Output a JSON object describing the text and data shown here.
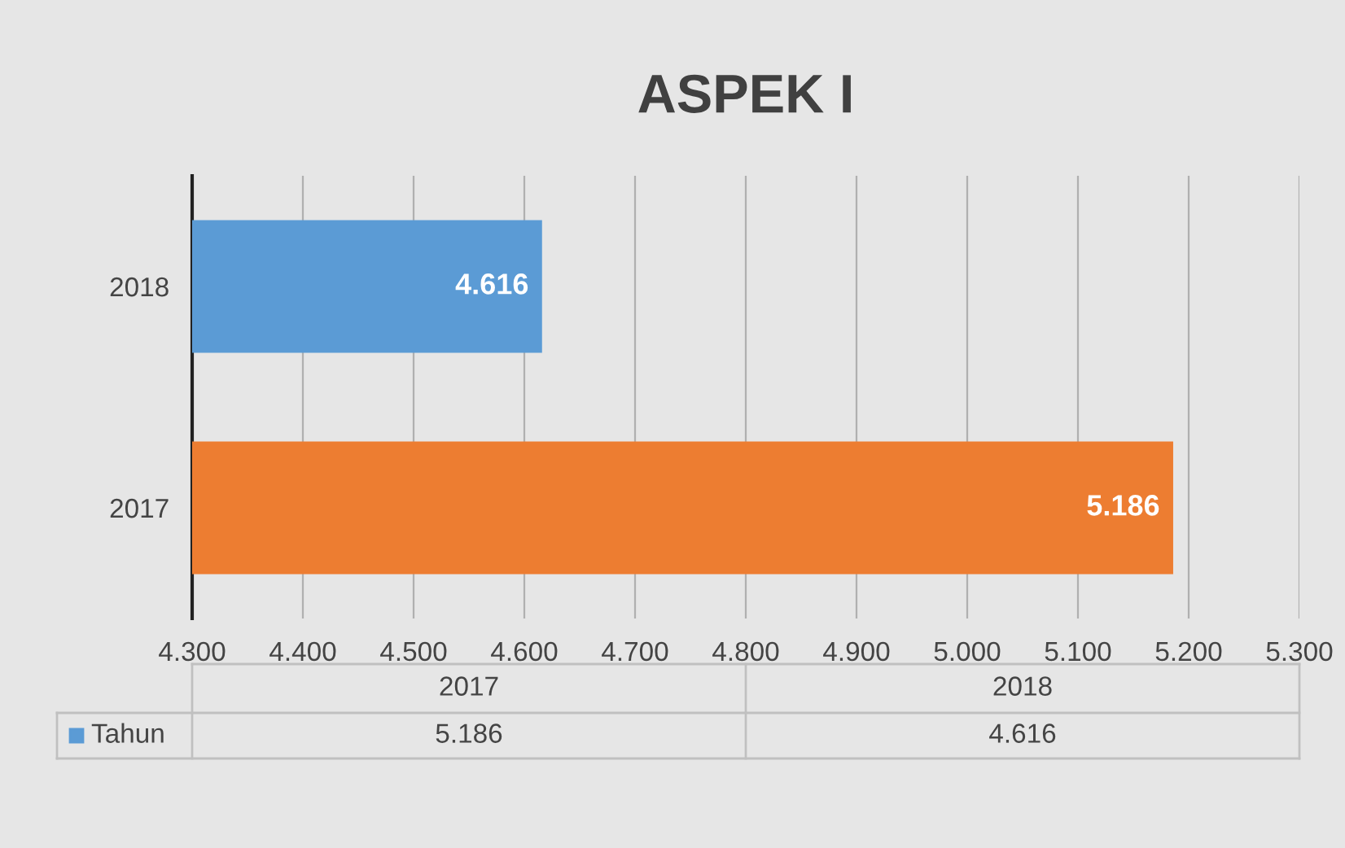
{
  "chart_data": {
    "type": "bar",
    "orientation": "horizontal",
    "title": "ASPEK I",
    "categories": [
      "2018",
      "2017"
    ],
    "series": [
      {
        "name": "Tahun",
        "color": "#5b9bd5",
        "colors": [
          "#5b9bd5",
          "#ed7d31"
        ],
        "values": [
          4.616,
          5.186
        ]
      }
    ],
    "xlim": [
      4.3,
      5.3
    ],
    "xticks": [
      {
        "value": 4.3,
        "label": "4.300"
      },
      {
        "value": 4.4,
        "label": "4.400"
      },
      {
        "value": 4.5,
        "label": "4.500"
      },
      {
        "value": 4.6,
        "label": "4.600"
      },
      {
        "value": 4.7,
        "label": "4.700"
      },
      {
        "value": 4.8,
        "label": "4.800"
      },
      {
        "value": 4.9,
        "label": "4.900"
      },
      {
        "value": 5.0,
        "label": "5.000"
      },
      {
        "value": 5.1,
        "label": "5.100"
      },
      {
        "value": 5.2,
        "label": "5.200"
      },
      {
        "value": 5.3,
        "label": "5.300"
      }
    ],
    "annotations": [
      "5.186",
      "4.616"
    ],
    "grid": "x",
    "legend": "bottom",
    "data_labels": true
  }
}
